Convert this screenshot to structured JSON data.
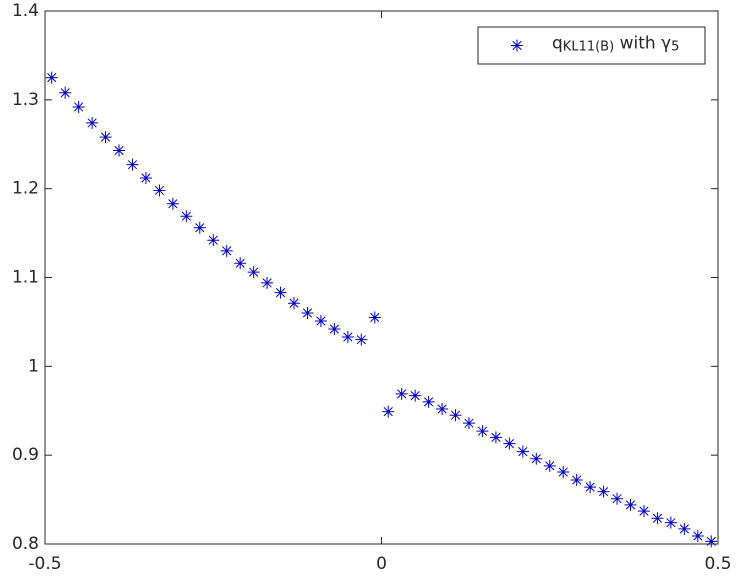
{
  "chart_data": {
    "type": "scatter",
    "legend_label": [
      {
        "text": "q"
      },
      {
        "text": "KL11(B)",
        "sub": true
      },
      {
        "text": " with γ"
      },
      {
        "text": "5",
        "sub": true
      }
    ],
    "color": "#0000c8",
    "marker": "asterisk",
    "legend": "northeast",
    "box": true,
    "x": [
      -0.49,
      -0.47,
      -0.45,
      -0.43,
      -0.41,
      -0.39,
      -0.37,
      -0.35,
      -0.33,
      -0.31,
      -0.29,
      -0.27,
      -0.25,
      -0.23,
      -0.21,
      -0.19,
      -0.17,
      -0.15,
      -0.13,
      -0.11,
      -0.09,
      -0.07,
      -0.05,
      -0.03,
      -0.01,
      0.01,
      0.03,
      0.05,
      0.07,
      0.09,
      0.11,
      0.13,
      0.15,
      0.17,
      0.19,
      0.21,
      0.23,
      0.25,
      0.27,
      0.29,
      0.31,
      0.33,
      0.35,
      0.37,
      0.39,
      0.41,
      0.43,
      0.45,
      0.47,
      0.49
    ],
    "values": [
      1.325,
      1.308,
      1.292,
      1.274,
      1.258,
      1.243,
      1.227,
      1.212,
      1.198,
      1.183,
      1.169,
      1.156,
      1.142,
      1.13,
      1.116,
      1.106,
      1.094,
      1.083,
      1.071,
      1.06,
      1.051,
      1.042,
      1.033,
      1.03,
      1.055,
      0.949,
      0.969,
      0.967,
      0.96,
      0.952,
      0.945,
      0.936,
      0.927,
      0.92,
      0.913,
      0.904,
      0.896,
      0.888,
      0.881,
      0.872,
      0.864,
      0.859,
      0.851,
      0.844,
      0.837,
      0.829,
      0.824,
      0.817,
      0.809,
      0.803
    ],
    "xlim": [
      -0.5,
      0.5
    ],
    "xticks": [
      -0.5,
      0,
      0.5
    ],
    "ylim": [
      0.8,
      1.4
    ],
    "yticks": [
      0.8,
      0.9,
      1,
      1.1,
      1.2,
      1.3,
      1.4
    ]
  }
}
